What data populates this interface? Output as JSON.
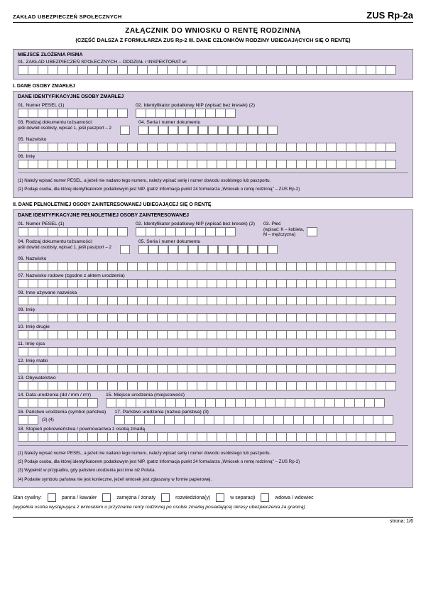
{
  "header": {
    "org": "ZAKŁAD  UBEZPIECZEŃ  SPOŁECZNYCH",
    "formId": "ZUS Rp-2a"
  },
  "title": "ZAŁĄCZNIK  DO  WNIOSKU  O  RENTĘ  RODZINNĄ",
  "subtitle": "(CZĘŚĆ DALSZA  Z  FORMULARZA  ZUS Rp-2     III. DANE  CZŁONKÓW  RODZINY  UBIEGAJĄCYCH  SIĘ  O  RENTĘ)",
  "place": {
    "heading": "MIEJSCE  ZŁOŻENIA  PISMA",
    "line01": "01. ZAKŁAD  UBEZPIECZEŃ  SPOŁECZNYCH – ODDZIAŁ / INSPEKTORAT  w:"
  },
  "sec1": {
    "heading": "I. DANE  OSOBY  ZMARŁEJ",
    "panelHeading": "DANE  IDENTYFIKACYJNE  OSOBY  ZMARŁEJ",
    "f01": "01. Numer PESEL (1)",
    "f02": "02. Identyfikator podatkowy NIP (wpisać bez kresek) (2)",
    "f03a": "03. Rodzaj dokumentu tożsamości:",
    "f03b": "jeśli dowód osobisty, wpisać 1, jeśli paszport – 2",
    "f04": "04. Seria i numer dokumentu",
    "f05": "05. Nazwisko",
    "f06": "06. Imię",
    "note1": "(1) Należy wpisać numer PESEL, a jeżeli nie nadano tego numeru, należy wpisać serię i numer dowodu osobistego lub paszportu.",
    "note2a": "(2) Podaje osoba, dla której identyfikatorem podatkowym jest NIP.  (patrz      Informacja punkt 24 formularza „Wniosek o rentę rodzinną\" – ZUS Rp-2)",
    "note2b": ""
  },
  "sec2": {
    "heading": "II. DANE  PEŁNOLETNIEJ  OSOBY  ZAINTERESOWANEJ  UBIEGAJĄCEJ  SIĘ  O  RENTĘ",
    "panelHeading": "DANE  IDENTYFIKACYJNE  PEŁNOLETNIEJ  OSOBY  ZAINTERESOWANEJ",
    "f01": "01. Numer PESEL (1)",
    "f02": "02. Identyfikator podatkowy NIP (wpisać bez kresek) (2)",
    "f03": "03. Płeć",
    "f03b": "(wpisać: K – kobieta,",
    "f03c": "M – mężczyzna)",
    "f04a": "04. Rodzaj dokumentu tożsamości:",
    "f04b": "jeśli dowód osobisty, wpisać 1, jeśli paszport – 2",
    "f05": "05. Seria i numer dokumentu",
    "f06": "06. Nazwisko",
    "f07": "07. Nazwisko rodowe (zgodne z aktem urodzenia)",
    "f08": "08. Inne używane nazwiska",
    "f09": "09. Imię",
    "f10": "10. Imię drugie",
    "f11": "11. Imię ojca",
    "f12": "12. Imię matki",
    "f13": "13. Obywatelstwo",
    "f14": "14. Data urodzenia (dd / mm / rrrr)",
    "f15": "15. Miejsce urodzenia (miejscowość)",
    "f16": "16. Państwo urodzenia (symbol państwa)",
    "f16b": "(3) (4)",
    "f17": "17. Państwo urodzenia (nazwa państwa) (3)",
    "f18": "18. Stopień pokrewieństwa / powinowactwa z osobą zmarłą",
    "n1": "(1) Należy wpisać numer PESEL, a jeżeli nie nadano tego numeru, należy wpisać serię i numer dowodu osobistego lub paszportu.",
    "n2": "(2) Podaje osoba, dla której identyfikatorem podatkowym jest NIP.  (patrz      Informacja punkt 24 formularza „Wniosek o rentę rodzinną\" – ZUS Rp-2)",
    "n3": "(3) Wypełnić w przypadku, gdy państwo urodzenia jest inne niż Polska.",
    "n4": "(4) Podanie symbolu państwa nie jest konieczne, jeżeli wniosek jest zgłaszany w formie papierowej."
  },
  "civil": {
    "label": "Stan cywilny:",
    "o1": "panna / kawaler",
    "o2": "zamężna / żonaty",
    "o3": "rozwiedziona(y)",
    "o4": "w separacji",
    "o5": "wdowa / wdowiec"
  },
  "finalNote": "(wypełnia osoba występująca z wnioskiem o przyznanie renty rodzinnej po osobie zmarłej posiadającej okresy ubezpieczenia za granicą)",
  "pager": "strona: 1/6"
}
